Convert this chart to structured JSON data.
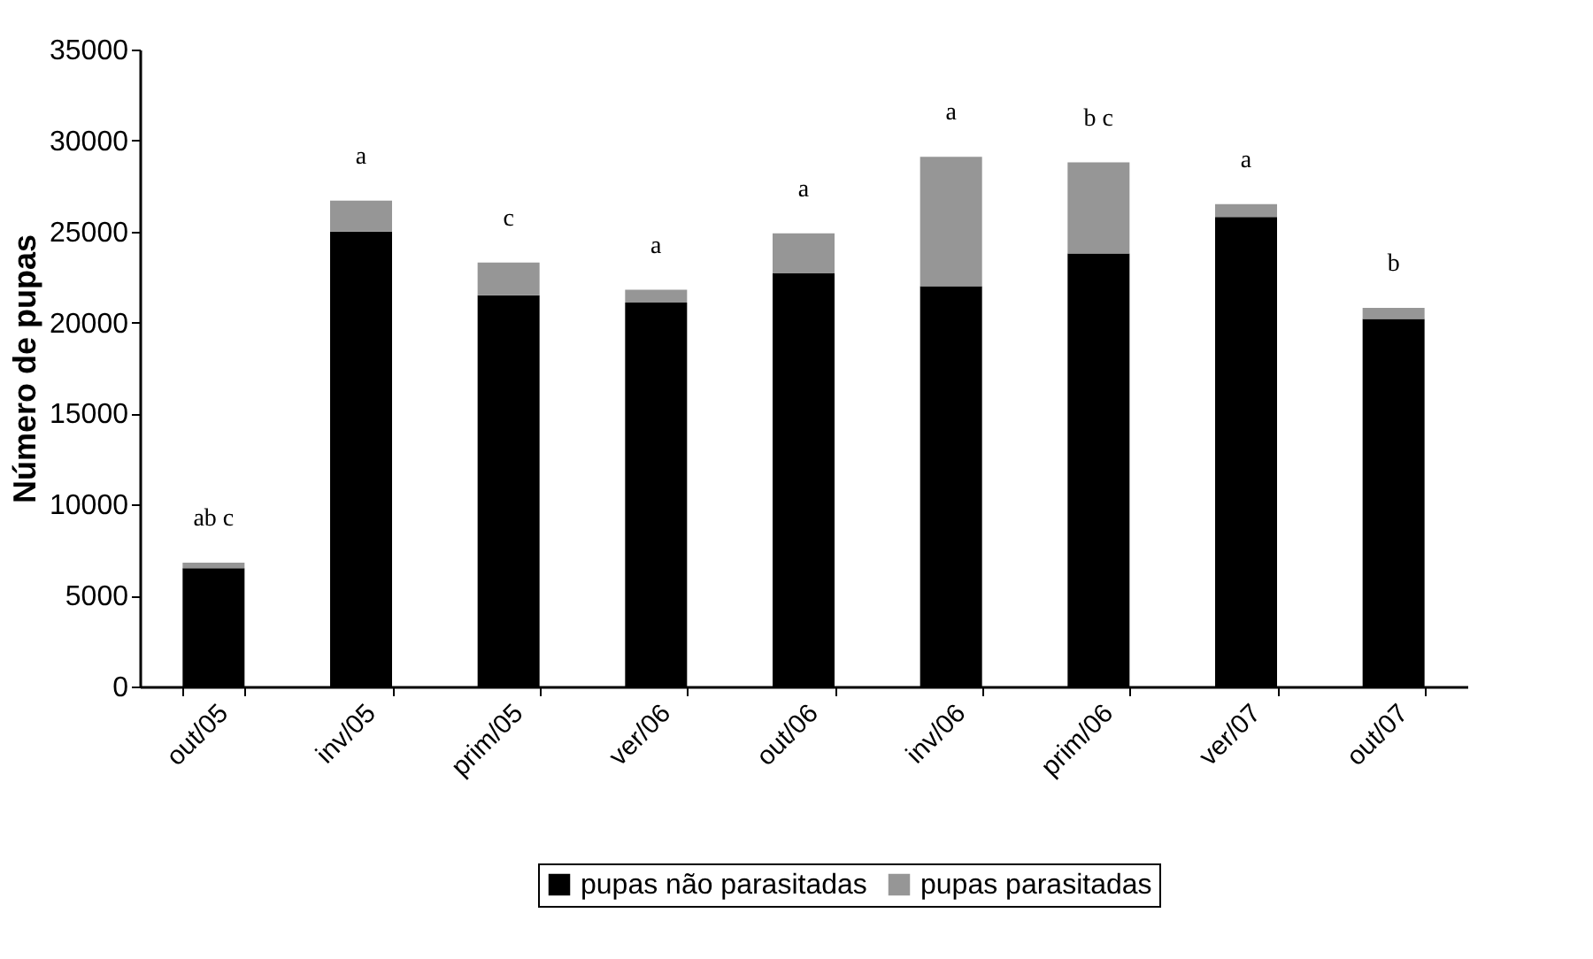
{
  "chart_data": {
    "type": "bar",
    "stacked": true,
    "ylabel": "Número de pupas",
    "categories": [
      "out/05",
      "inv/05",
      "prim/05",
      "ver/06",
      "out/06",
      "inv/06",
      "prim/06",
      "ver/07",
      "out/07"
    ],
    "series": [
      {
        "name": "pupas não parasitadas",
        "color": "#000000",
        "values": [
          6500,
          25000,
          21500,
          21100,
          22700,
          22000,
          23800,
          25800,
          20200
        ]
      },
      {
        "name": "pupas parasitadas",
        "color": "#969696",
        "values": [
          300,
          1700,
          1800,
          700,
          2200,
          7100,
          5000,
          700,
          600
        ]
      }
    ],
    "ylim": [
      0,
      35000
    ],
    "yticks": [
      0,
      5000,
      10000,
      15000,
      20000,
      25000,
      30000,
      35000
    ],
    "grid": false,
    "legend": "bottom",
    "annotations": [
      "ab c",
      "a",
      "c",
      "a",
      "a",
      "a",
      "b c",
      "a",
      "b"
    ]
  }
}
